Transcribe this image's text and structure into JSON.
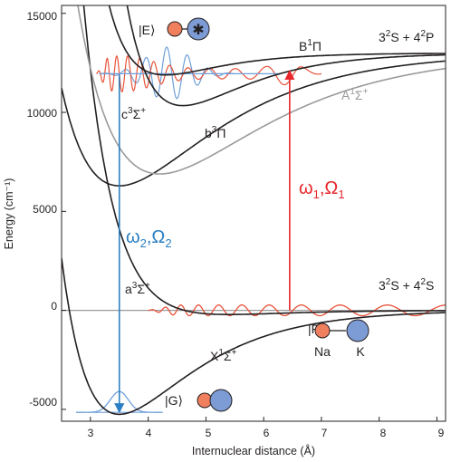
{
  "axes": {
    "xlabel": "Internuclear distance (Å)",
    "ylabel": "Energy (cm⁻¹)",
    "xlim": [
      2.5,
      9.15
    ],
    "ylim": [
      -5600,
      15400
    ],
    "xticks": [
      "3",
      "4",
      "5",
      "6",
      "7",
      "8",
      "9"
    ],
    "yticks": [
      "15000",
      "10000",
      "5000",
      "0",
      "-5000"
    ]
  },
  "curves": [
    {
      "id": "X1Sigma",
      "color": "#231f20",
      "De": 5250,
      "Re": 3.5,
      "beta": 0.8,
      "Tinf": 0
    },
    {
      "id": "a3Sigma",
      "color": "#231f20",
      "De": 210,
      "Re": 5.4,
      "beta": 0.9,
      "Tinf": 0
    },
    {
      "id": "b3Pi",
      "color": "#231f20",
      "De": 6700,
      "Re": 3.5,
      "beta": 0.62,
      "Tinf": 12990
    },
    {
      "id": "A1Sigma",
      "color": "#9a9a9a",
      "De": 6100,
      "Re": 4.2,
      "beta": 0.55,
      "Tinf": 12990
    },
    {
      "id": "c3Sigma",
      "color": "#231f20",
      "De": 2650,
      "Re": 4.6,
      "beta": 0.9,
      "Tinf": 12990
    },
    {
      "id": "B1Pi",
      "color": "#231f20",
      "De": 1100,
      "Re": 4.3,
      "beta": 1.05,
      "Tinf": 12990
    }
  ],
  "labels": {
    "X1Sigma": {
      "main": "X",
      "sup": "1",
      "sym": "Σ",
      "tail": "+"
    },
    "a3Sigma": {
      "main": "a",
      "sup": "3",
      "sym": "Σ",
      "tail": "+"
    },
    "b3Pi": {
      "main": "b",
      "sup": "3",
      "sym": "Π",
      "tail": ""
    },
    "A1Sigma": {
      "main": "A",
      "sup": "1",
      "sym": "Σ",
      "tail": "+"
    },
    "c3Sigma": {
      "main": "c",
      "sup": "3",
      "sym": "Σ",
      "tail": "+"
    },
    "B1Pi": {
      "main": "B",
      "sup": "1",
      "sym": "Π",
      "tail": ""
    }
  },
  "asymptotes": {
    "upper": {
      "p1": "3",
      "s1": "2",
      "t1": "S + 4",
      "p2": "2",
      "t2": "P"
    },
    "lower": {
      "p1": "3",
      "s1": "2",
      "t1": "S + 4",
      "p2": "2",
      "t2": "S"
    }
  },
  "states": {
    "E": "|E⟩",
    "F": "|F⟩",
    "G": "|G⟩"
  },
  "atoms": {
    "na": "Na",
    "k": "K",
    "na_color": "#f07f5e",
    "k_color": "#7d9bd4",
    "excited_mark": "✱"
  },
  "transitions": {
    "up": {
      "w": "ω",
      "w_sub": "1",
      "sep": ",",
      "o": "Ω",
      "o_sub": "1",
      "color": "#e8262b",
      "x": 6.45,
      "from": 0,
      "to": 12100
    },
    "down": {
      "w": "ω",
      "w_sub": "2",
      "sep": ",",
      "o": "Ω",
      "o_sub": "2",
      "color": "#2b7fc2",
      "x": 3.5,
      "from": 11900,
      "to": -5150
    }
  },
  "wavefunctions": {
    "ground": {
      "color": "#6f9fd8",
      "level": -5150,
      "center": 3.5,
      "width": 0.22,
      "amp": 1050
    },
    "excited_blue": {
      "color": "#6f9fd8",
      "level": 11950,
      "x0": 3.15,
      "x1": 5.5
    },
    "excited_red": {
      "color": "#e8533a",
      "level": 11950,
      "x0": 3.1,
      "x1": 7.0
    },
    "feshbach": {
      "color": "#e8533a",
      "level": 0,
      "x0": 4.0,
      "x1": 9.15,
      "amp": 270
    }
  },
  "colors": {
    "ink": "#231f20",
    "gray": "#9a9a9a",
    "red": "#e8262b",
    "blue": "#2b7fc2"
  }
}
